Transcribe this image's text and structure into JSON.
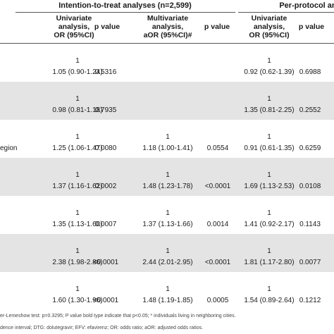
{
  "header": {
    "group1_title": "Intention-to-treat analyses (n=2,599)",
    "group2_title": "Per-protocol an",
    "col_univariate": [
      "Univariate",
      "analysis,",
      "OR (95%CI)"
    ],
    "col_pvalue": "p value",
    "col_multivariate": [
      "Multivariate",
      "analysis,",
      "aOR (95%CI)#"
    ],
    "col_univariate_pp": [
      "Univariate",
      "analysis,",
      "OR (95%CI)"
    ],
    "col_pvalue_pp": "p value"
  },
  "rows": [
    {
      "label": "",
      "ref1": "1",
      "uni": "1.05 (0.90-1.24)",
      "p1": "0.5316",
      "ref2": "",
      "multi": "",
      "p2": "",
      "ref3": "1",
      "uni_pp": "0.92 (0.62-1.39)",
      "p3": "0.6988"
    },
    {
      "label": "",
      "ref1": "1",
      "uni": "0.98 (0.81-1.18)",
      "p1": "0.7935",
      "ref2": "",
      "multi": "",
      "p2": "",
      "ref3": "1",
      "uni_pp": "1.35 (0.81-2.25)",
      "p3": "0.2552"
    },
    {
      "label": "egion",
      "ref1": "1",
      "uni": "1.25 (1.06-1.47)",
      "p1": "0.0080",
      "ref2": "1",
      "multi": "1.18 (1.00-1.41)",
      "p2": "0.0554",
      "ref3": "1",
      "uni_pp": "0.91 (0.61-1.35)",
      "p3": "0.6259"
    },
    {
      "label": "",
      "ref1": "1",
      "uni": "1.37 (1.16-1.62)",
      "p1": "0.0002",
      "ref2": "1",
      "multi": "1.48 (1.23-1.78)",
      "p2": "<0.0001",
      "ref3": "1",
      "uni_pp": "1.69 (1.13-2.53)",
      "p3": "0.0108"
    },
    {
      "label": "",
      "ref1": "1",
      "uni": "1.35 (1.13-1.60)",
      "p1": "0.0007",
      "ref2": "1",
      "multi": "1.37 (1.13-1.66)",
      "p2": "0.0014",
      "ref3": "1",
      "uni_pp": "1.41 (0.92-2.17)",
      "p3": "0.1143"
    },
    {
      "label": "",
      "ref1": "1",
      "uni": "2.38 (1.98-2.86)",
      "p1": "<0.0001",
      "ref2": "1",
      "multi": "2.44 (2.01-2.95)",
      "p2": "<0.0001",
      "ref3": "1",
      "uni_pp": "1.81 (1.17-2.80)",
      "p3": "0.0077"
    },
    {
      "label": "",
      "ref1": "1",
      "uni": "1.60 (1.30-1.96)",
      "p1": "<0.0001",
      "ref2": "1",
      "multi": "1.48 (1.19-1.85)",
      "p2": "0.0005",
      "ref3": "1",
      "uni_pp": "1.54 (0.89-2.64)",
      "p3": "0.1212"
    }
  ],
  "footnotes": [
    "er-Lemeshow test: p=0.3295; P value bold type indicate that p<0.05; * individuals living in neighboring cities.",
    "dence interval; DTG: dolutegravir; EFV: efavirenz; OR: odds ratio; aOR: adjusted odds ratios."
  ]
}
